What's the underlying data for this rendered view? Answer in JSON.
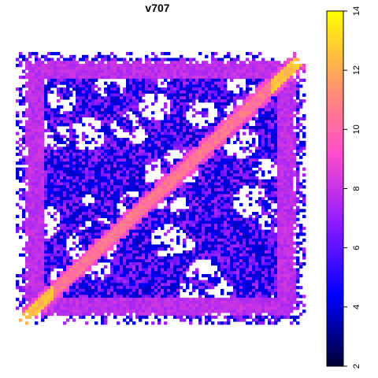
{
  "chart_data": {
    "type": "heatmap",
    "title": "v707",
    "xlabel": "",
    "ylabel": "",
    "grid": false,
    "colorbar": {
      "range": [
        2,
        14
      ],
      "ticks": [
        2,
        4,
        6,
        8,
        10,
        12,
        14
      ],
      "colors": [
        "#000033",
        "#0000ff",
        "#8c1aff",
        "#ff4dcc",
        "#ff9966",
        "#ffff00"
      ],
      "placement": "right"
    },
    "background_color": "#ffffff",
    "typical_values": {
      "open_cells": 4.0,
      "frame_band": 7.8,
      "diagonal_band": 10.5,
      "diagonal_ends": 12.5
    }
  }
}
